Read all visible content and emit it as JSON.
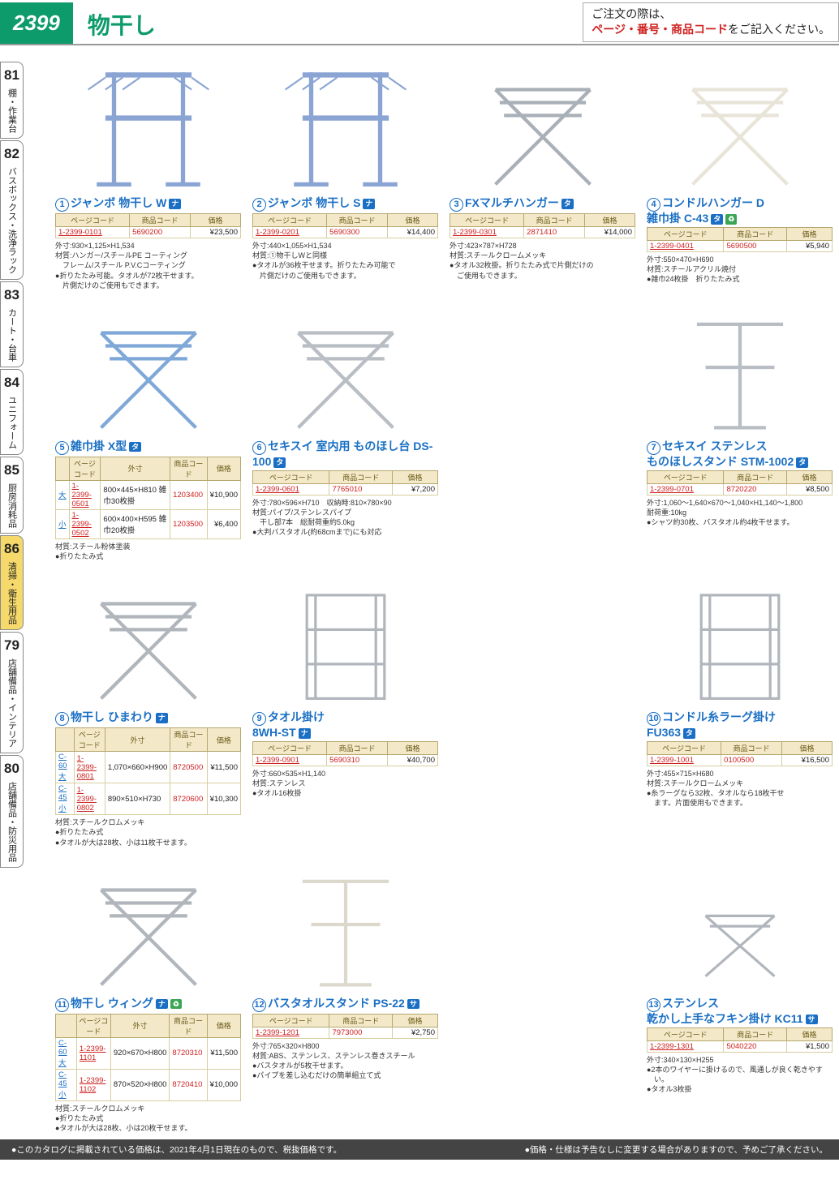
{
  "header": {
    "page": "2399",
    "title": "物干し",
    "order1": "ご注文の際は、",
    "order2": "ページ・番号・商品コード",
    "order3": "をご記入ください。"
  },
  "sidebar": [
    {
      "num": "81",
      "label": "棚・作業台"
    },
    {
      "num": "82",
      "label": "バスボックス・洗浄ラック"
    },
    {
      "num": "83",
      "label": "カート・台車"
    },
    {
      "num": "84",
      "label": "ユニフォーム"
    },
    {
      "num": "85",
      "label": "厨房消耗品"
    },
    {
      "num": "86",
      "label": "清掃・衛生用品",
      "active": true
    },
    {
      "num": "79",
      "label": "店舗備品・インテリア"
    },
    {
      "num": "80",
      "label": "店舗備品・防災用品"
    }
  ],
  "headers": {
    "pc": "ページコード",
    "cc": "商品コード",
    "pr": "価格",
    "size": "外寸"
  },
  "products": [
    {
      "n": "1",
      "title": "ジャンボ 物干し W",
      "badges": [
        "ナ"
      ],
      "rows": [
        {
          "pc": "1-2399-0101",
          "cc": "5690200",
          "pr": "¥23,500"
        }
      ],
      "specs": [
        "外寸:930×1,125×H1,534",
        "材質:ハンガー/スチールPE コーティング",
        "　フレーム/スチール P.V.Cコーティング",
        "●折りたたみ可能。タオルが72枚干せます。",
        "　片側だけのご使用もできます。"
      ],
      "svg": "rack1",
      "color": "#8aa4d4"
    },
    {
      "n": "2",
      "title": "ジャンボ 物干し S",
      "badges": [
        "ナ"
      ],
      "rows": [
        {
          "pc": "1-2399-0201",
          "cc": "5690300",
          "pr": "¥14,400"
        }
      ],
      "specs": [
        "外寸:440×1,055×H1,534",
        "材質:①物干しWと同様",
        "●タオルが36枚干せます。折りたたみ可能で",
        "　片側だけのご使用もできます。"
      ],
      "svg": "rack1",
      "color": "#8aa4d4"
    },
    {
      "n": "3",
      "title": "FXマルチハンガー",
      "badges": [
        "タ"
      ],
      "rows": [
        {
          "pc": "1-2399-0301",
          "cc": "2871410",
          "pr": "¥14,000"
        }
      ],
      "specs": [
        "外寸:423×787×H728",
        "材質:スチールクロームメッキ",
        "●タオル32枚掛。折りたたみ式で片側だけの",
        "　ご使用もできます。"
      ],
      "svg": "xrack",
      "color": "#aab0b8"
    },
    {
      "n": "4",
      "title": "コンドルハンガー D\n雑巾掛 C-43",
      "badges": [
        "タ",
        "♻"
      ],
      "rows": [
        {
          "pc": "1-2399-0401",
          "cc": "5690500",
          "pr": "¥5,940"
        }
      ],
      "specs": [
        "外寸:550×470×H690",
        "材質:スチールアクリル焼付",
        "●雑巾24枚掛　折りたたみ式"
      ],
      "svg": "xrack",
      "color": "#e8e4d8"
    },
    {
      "n": "5",
      "title": "雑巾掛 X型",
      "badges": [
        "タ"
      ],
      "hassize": true,
      "rows": [
        {
          "sz": "大",
          "pc": "1-2399-0501",
          "dim": "800×445×H810 雑巾30枚掛",
          "cc": "1203400",
          "pr": "¥10,900"
        },
        {
          "sz": "小",
          "pc": "1-2399-0502",
          "dim": "600×400×H595 雑巾20枚掛",
          "cc": "1203500",
          "pr": "¥6,400"
        }
      ],
      "specs": [
        "材質:スチール粉体塗装",
        "●折りたたみ式"
      ],
      "svg": "xrack",
      "color": "#7fa8d8"
    },
    {
      "n": "6",
      "title": "セキスイ 室内用 ものほし台 DS-100",
      "badges": [
        "タ"
      ],
      "rows": [
        {
          "pc": "1-2399-0601",
          "cc": "7765010",
          "pr": "¥7,200"
        }
      ],
      "specs": [
        "外寸:780×596×H710　収納時:810×780×90",
        "材質:パイプ/ステンレスパイプ",
        "　干し部7本　総耐荷重約5.0kg",
        "●大判バスタオル(約68cmまで)にも対応"
      ],
      "svg": "xrack",
      "color": "#b8bec4"
    },
    {
      "n": "7",
      "title": "セキスイ ステンレス\nものほしスタンド STM-1002",
      "badges": [
        "タ"
      ],
      "rows": [
        {
          "pc": "1-2399-0701",
          "cc": "8720220",
          "pr": "¥8,500"
        }
      ],
      "specs": [
        "外寸:1,060〜1,640×670〜1,040×H1,140〜1,800",
        "耐荷重:10kg",
        "●シャツ約30枚、バスタオル約4枚干せます。"
      ],
      "svg": "tstand",
      "color": "#b8bec4"
    },
    {
      "n": "8",
      "title": "物干し ひまわり",
      "badges": [
        "ナ"
      ],
      "hassize": true,
      "rows": [
        {
          "sz": "C-60 大",
          "pc": "1-2399-0801",
          "dim": "1,070×660×H900",
          "cc": "8720500",
          "pr": "¥11,500"
        },
        {
          "sz": "C-45 小",
          "pc": "1-2399-0802",
          "dim": "890×510×H730",
          "cc": "8720600",
          "pr": "¥10,300"
        }
      ],
      "specs": [
        "材質:スチールクロムメッキ",
        "●折りたたみ式",
        "●タオルが大は28枚、小は11枚干せます。"
      ],
      "svg": "xrack",
      "color": "#b0b6bc"
    },
    {
      "n": "9",
      "title": "タオル掛け\n8WH-ST",
      "badges": [
        "ナ"
      ],
      "rows": [
        {
          "pc": "1-2399-0901",
          "cc": "5690310",
          "pr": "¥40,700"
        }
      ],
      "specs": [
        "外寸:660×535×H1,140",
        "材質:ステンレス",
        "●タオル16枚掛"
      ],
      "svg": "shelf",
      "color": "#b0b6bc"
    },
    {
      "n": "10",
      "title": "コンドル糸ラーグ掛け\nFU363",
      "badges": [
        "タ"
      ],
      "rows": [
        {
          "pc": "1-2399-1001",
          "cc": "0100500",
          "pr": "¥16,500"
        }
      ],
      "specs": [
        "外寸:455×715×H680",
        "材質:スチールクロームメッキ",
        "●糸ラーグなら32枚、タオルなら18枚干せ",
        "　ます。片面使用もできます。"
      ],
      "svg": "shelf",
      "color": "#b0b6bc"
    },
    {
      "n": "11",
      "title": "物干し ウィング",
      "badges": [
        "ナ",
        "♻"
      ],
      "hassize": true,
      "rows": [
        {
          "sz": "C-60 大",
          "pc": "1-2399-1101",
          "dim": "920×670×H800",
          "cc": "8720310",
          "pr": "¥11,500"
        },
        {
          "sz": "C-45 小",
          "pc": "1-2399-1102",
          "dim": "870×520×H800",
          "cc": "8720410",
          "pr": "¥10,000"
        }
      ],
      "specs": [
        "材質:スチールクロムメッキ",
        "●折りたたみ式",
        "●タオルが大は28枚、小は20枚干せます。"
      ],
      "svg": "xrack",
      "color": "#b0b6bc"
    },
    {
      "n": "12",
      "title": "バスタオルスタンド PS-22",
      "badges": [
        "サ"
      ],
      "rows": [
        {
          "pc": "1-2399-1201",
          "cc": "7973000",
          "pr": "¥2,750"
        }
      ],
      "specs": [
        "外寸:765×320×H800",
        "材質:ABS、ステンレス、ステンレス巻きスチール",
        "●バスタオルが5枚干せます。",
        "●パイプを差し込むだけの簡単組立て式"
      ],
      "svg": "tstand",
      "color": "#dcd8cc"
    },
    {
      "n": "13",
      "title": "ステンレス\n乾かし上手なフキン掛け KC11",
      "badges": [
        "サ"
      ],
      "rows": [
        {
          "pc": "1-2399-1301",
          "cc": "5040220",
          "pr": "¥1,500"
        }
      ],
      "specs": [
        "外寸:340×130×H255",
        "●2本のワイヤーに掛けるので、風通しが良く乾きやす",
        "　い。",
        "●タオル3枚掛"
      ],
      "svg": "mini",
      "color": "#b0b6bc"
    }
  ],
  "footer": {
    "left": "●このカタログに掲載されている価格は、2021年4月1日現在のもので、税抜価格です。",
    "right": "●価格・仕様は予告なしに変更する場合がありますので、予めご了承ください。"
  }
}
